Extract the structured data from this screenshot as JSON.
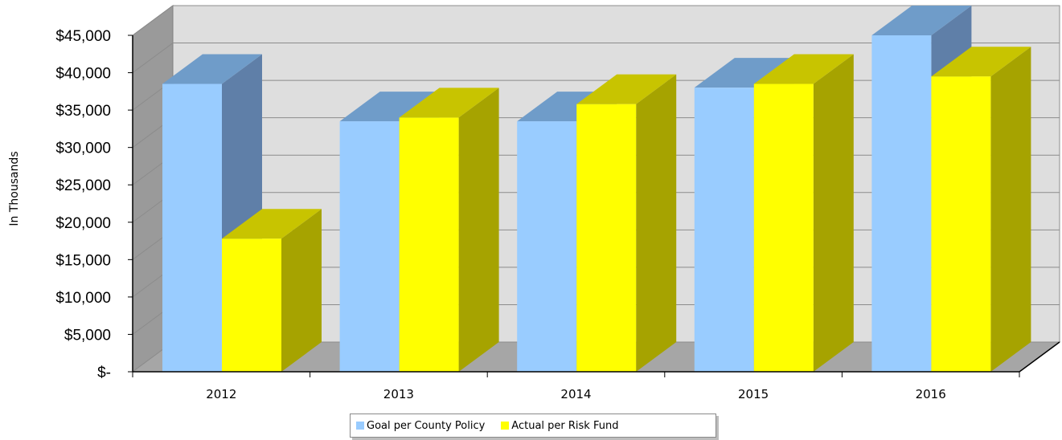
{
  "chart_data": {
    "type": "bar",
    "style": "3d-clustered-column",
    "categories": [
      "2012",
      "2013",
      "2014",
      "2015",
      "2016"
    ],
    "series": [
      {
        "name": "Goal per County Policy",
        "values": [
          38500,
          33500,
          33500,
          38000,
          45000
        ],
        "color": "#99ccff"
      },
      {
        "name": "Actual per Risk Fund",
        "values": [
          17800,
          34000,
          35800,
          38500,
          39500
        ],
        "color": "#ffff00"
      }
    ],
    "yticks": [
      "$-",
      "$5,000",
      "$10,000",
      "$15,000",
      "$20,000",
      "$25,000",
      "$30,000",
      "$35,000",
      "$40,000",
      "$45,000"
    ],
    "ylim": [
      0,
      45000
    ],
    "ylabel": "In Thousands",
    "xlabel": "",
    "grid": true,
    "legend": "bottom"
  }
}
